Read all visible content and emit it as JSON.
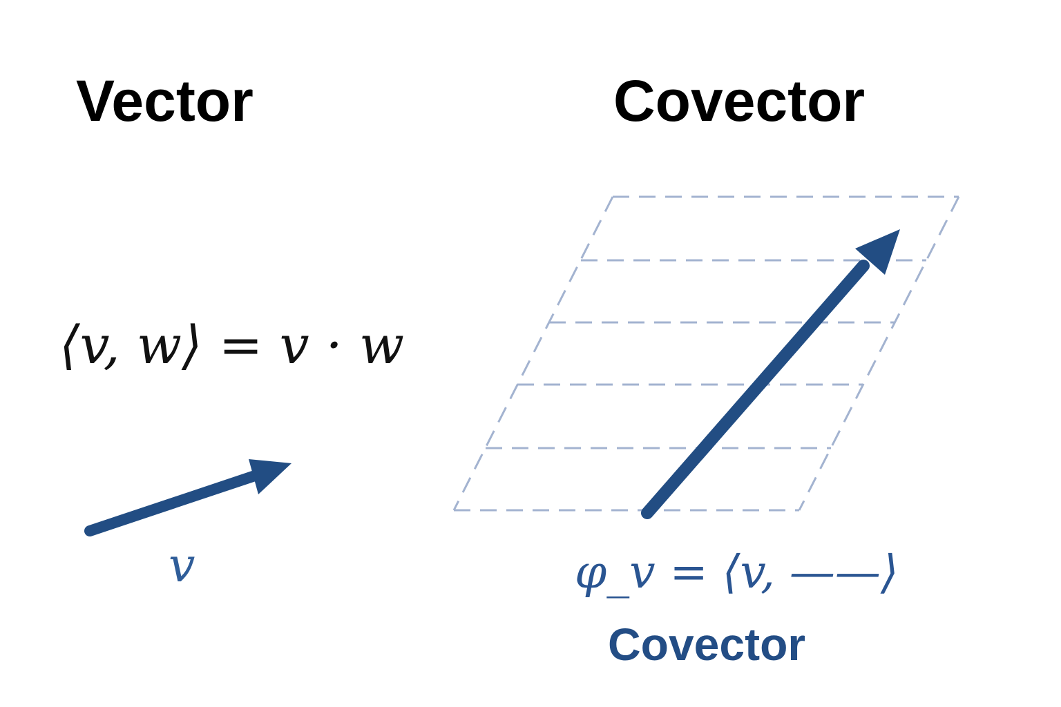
{
  "headings": {
    "vector": "Vector",
    "covector": "Covector"
  },
  "formulas": {
    "inner_product": "⟨v, w⟩ = v · w",
    "vector_label": "v",
    "covector_definition": "φ_v = ⟨v, ——⟩"
  },
  "captions": {
    "covector": "Covector"
  },
  "colors": {
    "arrow": "#224d83",
    "dashed_grid": "#a3b3d0",
    "math_blue": "#2f5d99",
    "heading": "#000000"
  },
  "icons": {
    "vector_arrow": "arrow-icon",
    "covector_arrow": "arrow-icon",
    "covector_level_sets": "dashed-parallelogram-grid"
  }
}
